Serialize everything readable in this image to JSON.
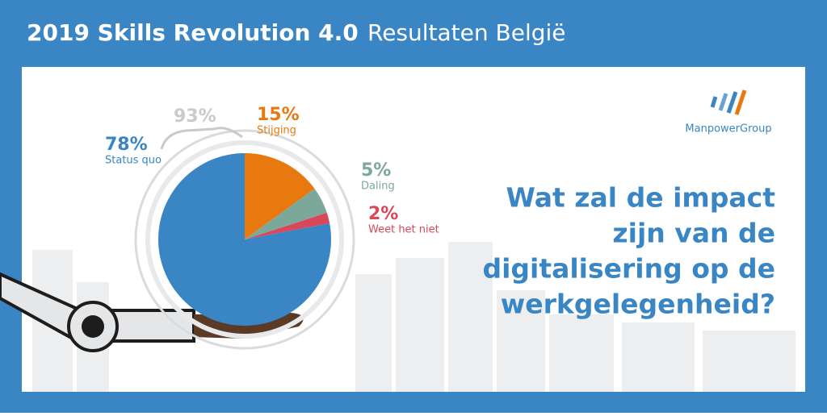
{
  "header": {
    "title": "2019 Skills Revolution 4.0",
    "subtitle": "Resultaten België"
  },
  "logo": "ManpowerGroup",
  "question": [
    "Wat zal de impact",
    "zijn van de",
    "digitalisering op de",
    "werkgelegenheid?"
  ],
  "chart_data": {
    "type": "pie",
    "categories": [
      "Stijging",
      "Daling",
      "Weet het niet",
      "Status quo"
    ],
    "values": [
      15,
      5,
      2,
      78
    ],
    "value_labels": [
      "15%",
      "5%",
      "2%",
      "78%"
    ],
    "colors": [
      "#e8790e",
      "#7ba89a",
      "#d9475a",
      "#3a86c4"
    ],
    "annotation": "93%"
  }
}
